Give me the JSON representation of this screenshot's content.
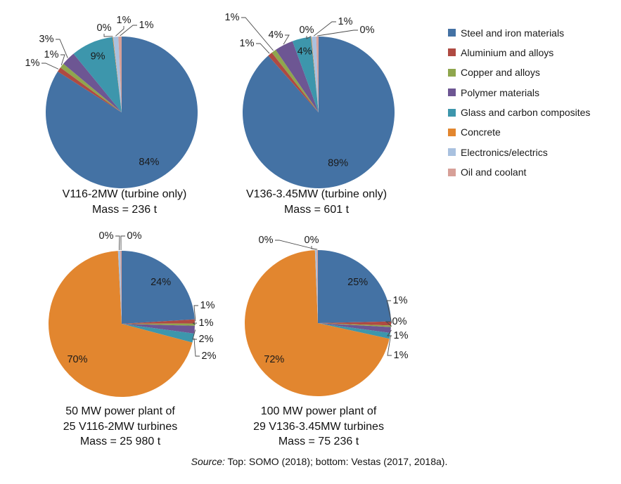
{
  "figure": {
    "source_prefix": "Source:",
    "source_text": " Top: SOMO (2018); bottom: Vestas (2017, 2018a)."
  },
  "legend": {
    "position": "right",
    "items": [
      {
        "key": "steel-and-iron-materials",
        "label": "Steel and iron materials",
        "color": "#4472A4"
      },
      {
        "key": "aluminium-and-alloys",
        "label": "Aluminium and alloys",
        "color": "#AF4A42"
      },
      {
        "key": "copper-and-alloys",
        "label": "Copper and alloys",
        "color": "#8FA64D"
      },
      {
        "key": "polymer-materials",
        "label": "Polymer materials",
        "color": "#6D5693"
      },
      {
        "key": "glass-carbon-composites",
        "label": "Glass and carbon composites",
        "color": "#3D96AC"
      },
      {
        "key": "concrete",
        "label": "Concrete",
        "color": "#E2862F"
      },
      {
        "key": "electronics-electrics",
        "label": "Electronics/electrics",
        "color": "#A9C1DF"
      },
      {
        "key": "oil-and-coolant",
        "label": "Oil and coolant",
        "color": "#D7A098"
      }
    ]
  },
  "chart_data": [
    {
      "type": "pie",
      "name": "v116-2mw-turbine-only",
      "caption_lines": [
        "V116-2MW (turbine only)",
        "Mass = 236 t"
      ],
      "categories": [
        "Steel and iron materials",
        "Aluminium and alloys",
        "Copper and alloys",
        "Polymer materials",
        "Glass and carbon composites",
        "Concrete",
        "Electronics/electrics",
        "Oil and coolant"
      ],
      "values": [
        84,
        1,
        1,
        3,
        9,
        0,
        1,
        1
      ],
      "labels": [
        "84%",
        "1%",
        "1%",
        "3%",
        "9%",
        "0%",
        "1%",
        "1%"
      ],
      "unit": "% of total mass"
    },
    {
      "type": "pie",
      "name": "v136-3-45mw-turbine-only",
      "caption_lines": [
        "V136-3.45MW (turbine only)",
        "Mass = 601 t"
      ],
      "categories": [
        "Steel and iron materials",
        "Aluminium and alloys",
        "Copper and alloys",
        "Polymer materials",
        "Glass and carbon composites",
        "Concrete",
        "Electronics/electrics",
        "Oil and coolant"
      ],
      "values": [
        89,
        1,
        1,
        4,
        4,
        0,
        1,
        0
      ],
      "labels": [
        "89%",
        "1%",
        "1%",
        "4%",
        "4%",
        "0%",
        "1%",
        "0%"
      ],
      "unit": "% of total mass"
    },
    {
      "type": "pie",
      "name": "50mw-power-plant",
      "caption_lines": [
        "50 MW power plant of",
        "25 V116-2MW turbines",
        "Mass = 25 980 t"
      ],
      "categories": [
        "Steel and iron materials",
        "Aluminium and alloys",
        "Copper and alloys",
        "Polymer materials",
        "Glass and carbon composites",
        "Concrete",
        "Electronics/electrics",
        "Oil and coolant"
      ],
      "values": [
        24,
        1,
        1,
        2,
        2,
        70,
        0,
        0
      ],
      "labels": [
        "24%",
        "1%",
        "1%",
        "2%",
        "2%",
        "70%",
        "0%",
        "0%"
      ],
      "unit": "% of total mass"
    },
    {
      "type": "pie",
      "name": "100mw-power-plant",
      "caption_lines": [
        "100 MW power plant of",
        "29 V136-3.45MW turbines",
        "Mass = 75 236 t"
      ],
      "categories": [
        "Steel and iron materials",
        "Aluminium and alloys",
        "Copper and alloys",
        "Polymer materials",
        "Glass and carbon composites",
        "Concrete",
        "Electronics/electrics",
        "Oil and coolant"
      ],
      "values": [
        25,
        1,
        0,
        1,
        1,
        72,
        0,
        0
      ],
      "labels": [
        "25%",
        "1%",
        "0%",
        "1%",
        "1%",
        "72%",
        "0%",
        "0%"
      ],
      "unit": "% of total mass"
    }
  ]
}
